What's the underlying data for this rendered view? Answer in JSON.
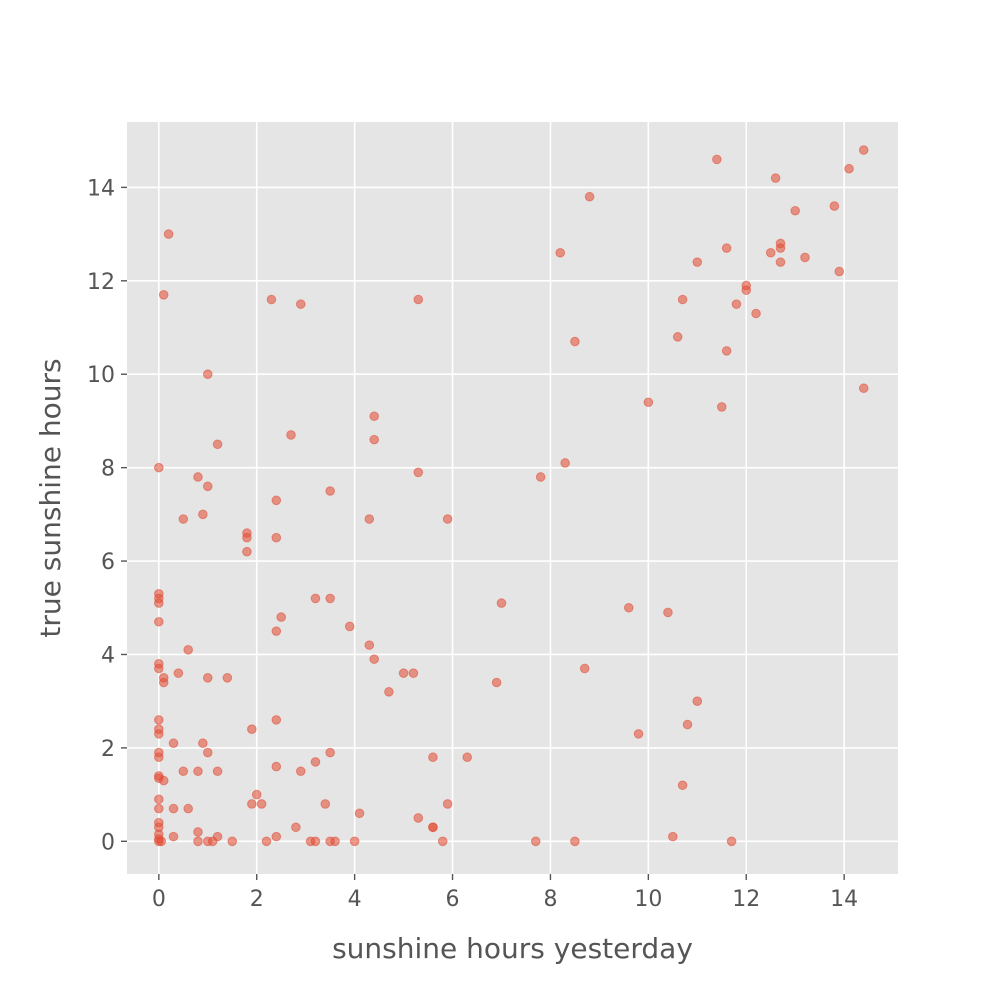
{
  "chart_data": {
    "type": "scatter",
    "title": "",
    "xlabel": "sunshine hours yesterday",
    "ylabel": "true sunshine hours",
    "xlim": [
      -0.65,
      15.1
    ],
    "ylim": [
      -0.7,
      15.4
    ],
    "xticks": [
      0,
      2,
      4,
      6,
      8,
      10,
      12,
      14
    ],
    "yticks": [
      0,
      2,
      4,
      6,
      8,
      10,
      12,
      14
    ],
    "xtick_labels": [
      "0",
      "2",
      "4",
      "6",
      "8",
      "10",
      "12",
      "14"
    ],
    "ytick_labels": [
      "0",
      "2",
      "4",
      "6",
      "8",
      "10",
      "12",
      "14"
    ],
    "grid": true,
    "background": "#e5e5e5",
    "point_color": "#e24a33",
    "point_alpha": 0.55,
    "points": [
      [
        0.2,
        13.0
      ],
      [
        0.1,
        11.7
      ],
      [
        0.0,
        8.0
      ],
      [
        1.0,
        10.0
      ],
      [
        2.3,
        11.6
      ],
      [
        2.9,
        11.5
      ],
      [
        5.3,
        11.6
      ],
      [
        1.2,
        8.5
      ],
      [
        0.8,
        7.8
      ],
      [
        1.0,
        7.6
      ],
      [
        0.9,
        7.0
      ],
      [
        0.5,
        6.9
      ],
      [
        1.8,
        6.6
      ],
      [
        1.8,
        6.5
      ],
      [
        1.8,
        6.2
      ],
      [
        2.4,
        7.3
      ],
      [
        2.4,
        6.5
      ],
      [
        2.7,
        8.7
      ],
      [
        3.5,
        7.5
      ],
      [
        4.3,
        6.9
      ],
      [
        4.4,
        9.1
      ],
      [
        4.4,
        8.6
      ],
      [
        5.3,
        7.9
      ],
      [
        5.9,
        6.9
      ],
      [
        0.0,
        5.3
      ],
      [
        0.0,
        5.2
      ],
      [
        0.0,
        5.1
      ],
      [
        0.0,
        4.7
      ],
      [
        0.6,
        4.1
      ],
      [
        0.0,
        3.8
      ],
      [
        0.0,
        3.7
      ],
      [
        0.1,
        3.5
      ],
      [
        0.1,
        3.4
      ],
      [
        0.4,
        3.6
      ],
      [
        1.0,
        3.5
      ],
      [
        1.4,
        3.5
      ],
      [
        2.4,
        4.5
      ],
      [
        2.5,
        4.8
      ],
      [
        3.2,
        5.2
      ],
      [
        3.5,
        5.2
      ],
      [
        3.9,
        4.6
      ],
      [
        4.3,
        4.2
      ],
      [
        4.4,
        3.9
      ],
      [
        4.7,
        3.2
      ],
      [
        5.0,
        3.6
      ],
      [
        5.2,
        3.6
      ],
      [
        0.0,
        2.6
      ],
      [
        0.0,
        2.4
      ],
      [
        0.0,
        2.3
      ],
      [
        0.0,
        1.9
      ],
      [
        0.0,
        1.8
      ],
      [
        0.0,
        1.4
      ],
      [
        0.0,
        1.35
      ],
      [
        0.1,
        1.3
      ],
      [
        0.3,
        2.1
      ],
      [
        0.9,
        2.1
      ],
      [
        1.0,
        1.9
      ],
      [
        0.5,
        1.5
      ],
      [
        0.8,
        1.5
      ],
      [
        1.2,
        1.5
      ],
      [
        1.9,
        2.4
      ],
      [
        2.4,
        2.6
      ],
      [
        2.4,
        1.6
      ],
      [
        2.9,
        1.5
      ],
      [
        3.2,
        1.7
      ],
      [
        3.5,
        1.9
      ],
      [
        0.0,
        0.9
      ],
      [
        0.0,
        0.7
      ],
      [
        0.0,
        0.4
      ],
      [
        0.0,
        0.3
      ],
      [
        0.0,
        0.15
      ],
      [
        0.0,
        0.05
      ],
      [
        0.0,
        0.0
      ],
      [
        0.05,
        0.0
      ],
      [
        0.3,
        0.7
      ],
      [
        0.6,
        0.7
      ],
      [
        0.3,
        0.1
      ],
      [
        0.8,
        0.2
      ],
      [
        0.8,
        0.0
      ],
      [
        1.0,
        0.0
      ],
      [
        1.1,
        0.0
      ],
      [
        1.2,
        0.1
      ],
      [
        1.5,
        0.0
      ],
      [
        1.9,
        0.8
      ],
      [
        2.0,
        1.0
      ],
      [
        2.1,
        0.8
      ],
      [
        2.2,
        0.0
      ],
      [
        2.4,
        0.1
      ],
      [
        2.8,
        0.3
      ],
      [
        3.1,
        0.0
      ],
      [
        3.2,
        0.0
      ],
      [
        3.4,
        0.8
      ],
      [
        3.5,
        0.0
      ],
      [
        3.6,
        0.0
      ],
      [
        4.0,
        0.0
      ],
      [
        4.1,
        0.6
      ],
      [
        5.3,
        0.5
      ],
      [
        5.6,
        1.8
      ],
      [
        5.6,
        0.3
      ],
      [
        5.6,
        0.3
      ],
      [
        5.8,
        0.0
      ],
      [
        5.9,
        0.8
      ],
      [
        6.3,
        1.8
      ],
      [
        6.9,
        3.4
      ],
      [
        7.0,
        5.1
      ],
      [
        7.7,
        0.0
      ],
      [
        8.5,
        0.0
      ],
      [
        8.7,
        3.7
      ],
      [
        7.8,
        7.8
      ],
      [
        8.3,
        8.1
      ],
      [
        8.2,
        12.6
      ],
      [
        8.5,
        10.7
      ],
      [
        8.8,
        13.8
      ],
      [
        9.6,
        5.0
      ],
      [
        10.4,
        4.9
      ],
      [
        9.8,
        2.3
      ],
      [
        10.5,
        0.1
      ],
      [
        10.7,
        1.2
      ],
      [
        10.8,
        2.5
      ],
      [
        11.0,
        3.0
      ],
      [
        11.7,
        0.0
      ],
      [
        10.0,
        9.4
      ],
      [
        10.6,
        10.8
      ],
      [
        10.7,
        11.6
      ],
      [
        11.0,
        12.4
      ],
      [
        11.4,
        14.6
      ],
      [
        11.5,
        9.3
      ],
      [
        11.6,
        12.7
      ],
      [
        11.6,
        10.5
      ],
      [
        11.8,
        11.5
      ],
      [
        12.0,
        11.9
      ],
      [
        12.0,
        11.8
      ],
      [
        12.2,
        11.3
      ],
      [
        12.5,
        12.6
      ],
      [
        12.6,
        14.2
      ],
      [
        12.7,
        12.8
      ],
      [
        12.7,
        12.7
      ],
      [
        12.7,
        12.4
      ],
      [
        13.0,
        13.5
      ],
      [
        13.2,
        12.5
      ],
      [
        13.8,
        13.6
      ],
      [
        13.9,
        12.2
      ],
      [
        14.1,
        14.4
      ],
      [
        14.4,
        14.8
      ],
      [
        14.4,
        9.7
      ]
    ]
  }
}
